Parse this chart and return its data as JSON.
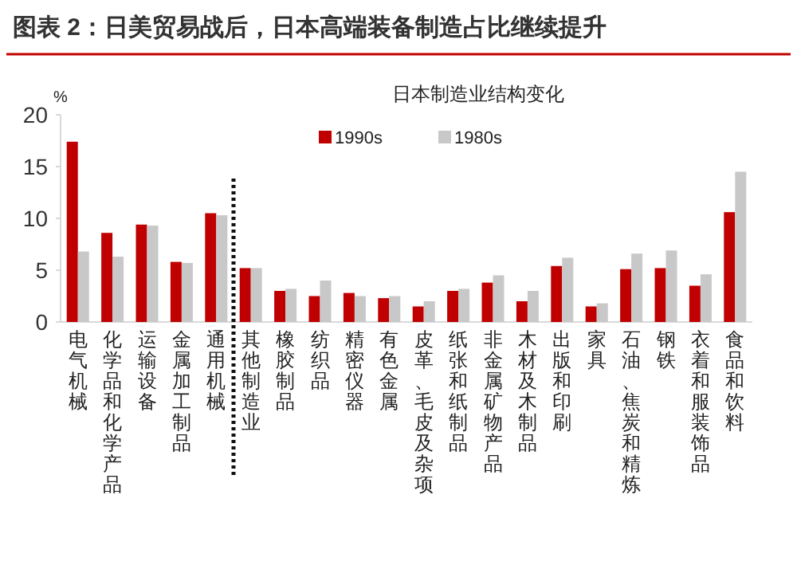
{
  "chart_data": {
    "type": "bar",
    "title": "图表 2：日美贸易战后，日本高端装备制造占比继续提升",
    "subtitle": "日本制造业结构变化",
    "ylabel": "%",
    "categories": [
      "电气机械",
      "化学品和化学产品",
      "运输设备",
      "金属加工制品",
      "通用机械",
      "其他制造业",
      "橡胶制品",
      "纺织品",
      "精密仪器",
      "有色金属",
      "皮革、毛皮及杂项",
      "纸张和纸制品",
      "非金属矿物产品",
      "木材及木制品",
      "出版和印刷",
      "家具",
      "石油、焦炭和精炼",
      "钢铁",
      "衣着和服装饰品",
      "食品和饮料"
    ],
    "series": [
      {
        "name": "1990s",
        "color": "#c00000",
        "values": [
          17.4,
          8.6,
          9.4,
          5.8,
          10.5,
          5.2,
          3.0,
          2.5,
          2.8,
          2.3,
          1.5,
          3.0,
          3.8,
          2.0,
          5.4,
          1.5,
          5.1,
          5.2,
          3.5,
          10.6
        ]
      },
      {
        "name": "1980s",
        "color": "#c8c8c8",
        "values": [
          6.8,
          6.3,
          9.3,
          5.7,
          10.3,
          5.2,
          3.2,
          4.0,
          2.5,
          2.5,
          2.0,
          3.2,
          4.5,
          3.0,
          6.2,
          1.8,
          6.6,
          6.9,
          4.6,
          14.5
        ]
      }
    ],
    "ylim": [
      0,
      20
    ],
    "yticks": [
      0,
      5,
      10,
      15,
      20
    ],
    "grid": false,
    "legend": "top"
  }
}
